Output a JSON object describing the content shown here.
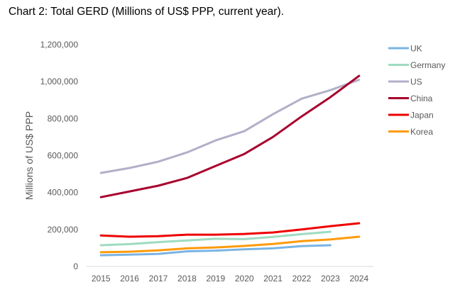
{
  "title": "Chart 2: Total GERD (Millions of US$ PPP, current year).",
  "chart_data": {
    "type": "line",
    "title": "Chart 2: Total GERD (Millions of US$ PPP, current year).",
    "xlabel": "",
    "ylabel": "Millions of US$ PPP",
    "x": [
      "2015",
      "2016",
      "2017",
      "2018",
      "2019",
      "2020",
      "2021",
      "2022",
      "2023",
      "2024"
    ],
    "ylim": [
      0,
      1200000
    ],
    "yticks": [
      0,
      200000,
      400000,
      600000,
      800000,
      1000000,
      1200000
    ],
    "ytick_labels": [
      "0",
      "200,000",
      "400,000",
      "600,000",
      "800,000",
      "1,000,000",
      "1,200,000"
    ],
    "grid": false,
    "legend_position": "right",
    "series": [
      {
        "name": "UK",
        "color": "#7ab4e3",
        "values": [
          61000,
          64000,
          68000,
          82000,
          86000,
          93000,
          98000,
          110000,
          115000,
          null
        ]
      },
      {
        "name": "Germany",
        "color": "#9edbc0",
        "values": [
          115000,
          121000,
          132000,
          141000,
          150000,
          148000,
          160000,
          175000,
          188000,
          null
        ]
      },
      {
        "name": "US",
        "color": "#b2afc8",
        "values": [
          506000,
          533000,
          567000,
          617000,
          682000,
          732000,
          824000,
          908000,
          954000,
          1010000
        ]
      },
      {
        "name": "China",
        "color": "#a8002c",
        "values": [
          375000,
          406000,
          437000,
          479000,
          544000,
          609000,
          701000,
          812000,
          916000,
          1031000
        ]
      },
      {
        "name": "Japan",
        "color": "#ee0000",
        "values": [
          168000,
          161000,
          164000,
          172000,
          172000,
          176000,
          184000,
          200000,
          218000,
          234000
        ]
      },
      {
        "name": "Korea",
        "color": "#ff9a0a",
        "values": [
          77000,
          80000,
          87000,
          98000,
          103000,
          111000,
          122000,
          137000,
          146000,
          161000
        ]
      }
    ]
  }
}
